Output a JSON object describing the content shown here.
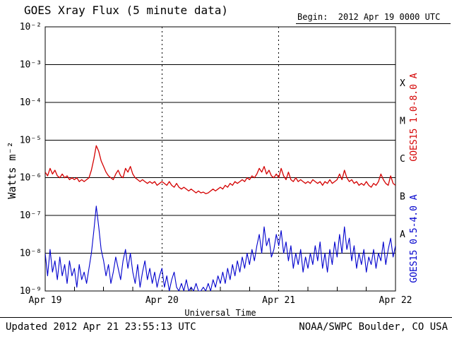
{
  "header": {
    "title": "GOES Xray Flux (5 minute data)",
    "begin_label": "Begin:  2012 Apr 19 0000 UTC"
  },
  "footer": {
    "updated": "Updated 2012 Apr 21 23:55:13 UTC",
    "source": "NOAA/SWPC Boulder, CO USA"
  },
  "axes": {
    "ylabel": "Watts m⁻²",
    "xlabel": "Universal Time",
    "x_ticks": [
      "Apr 19",
      "Apr 20",
      "Apr 21",
      "Apr 22"
    ],
    "y_tick_labels": [
      "10⁻²",
      "10⁻³",
      "10⁻⁴",
      "10⁻⁵",
      "10⁻⁶",
      "10⁻⁷",
      "10⁻⁸",
      "10⁻⁹"
    ],
    "flare_classes": [
      "X",
      "M",
      "C",
      "B",
      "A"
    ]
  },
  "colors": {
    "long": "#d40000",
    "short": "#0000cd",
    "grid": "#000000",
    "background": "#ffffff"
  },
  "chart_data": {
    "type": "line",
    "title": "GOES Xray Flux (5 minute data)",
    "xlabel": "Universal Time",
    "ylabel": "Watts m⁻²",
    "x_unit": "hours since 2012 Apr 19 0000 UTC",
    "x_range": [
      0,
      72
    ],
    "x_day_boundaries_hours": [
      24,
      48
    ],
    "y_scale": "log10",
    "y_range_log10": [
      -9,
      -2
    ],
    "grid": "decade horizontal solid, day vertical dotted",
    "legend_position": "right-rotated",
    "x_step_hours": 0.5,
    "series": [
      {
        "name": "GOES15 1.0-8.0 A",
        "color": "#d40000",
        "log10_values": [
          -5.85,
          -5.95,
          -5.75,
          -5.9,
          -5.8,
          -5.95,
          -6.0,
          -5.9,
          -6.0,
          -5.95,
          -6.05,
          -6.0,
          -6.05,
          -6.0,
          -6.1,
          -6.05,
          -6.1,
          -6.05,
          -6.0,
          -5.8,
          -5.5,
          -5.15,
          -5.3,
          -5.55,
          -5.7,
          -5.85,
          -5.95,
          -6.0,
          -6.05,
          -5.9,
          -5.8,
          -5.95,
          -6.0,
          -5.75,
          -5.85,
          -5.7,
          -5.9,
          -6.0,
          -6.05,
          -6.1,
          -6.05,
          -6.1,
          -6.15,
          -6.1,
          -6.15,
          -6.1,
          -6.2,
          -6.15,
          -6.1,
          -6.15,
          -6.2,
          -6.1,
          -6.2,
          -6.25,
          -6.15,
          -6.25,
          -6.3,
          -6.25,
          -6.3,
          -6.35,
          -6.3,
          -6.35,
          -6.4,
          -6.35,
          -6.4,
          -6.38,
          -6.42,
          -6.4,
          -6.35,
          -6.3,
          -6.35,
          -6.3,
          -6.25,
          -6.3,
          -6.2,
          -6.25,
          -6.15,
          -6.2,
          -6.1,
          -6.15,
          -6.1,
          -6.05,
          -6.1,
          -6.0,
          -6.05,
          -5.95,
          -6.0,
          -5.9,
          -5.75,
          -5.85,
          -5.7,
          -5.9,
          -5.8,
          -5.95,
          -6.0,
          -5.9,
          -6.0,
          -5.75,
          -5.95,
          -6.05,
          -5.85,
          -6.05,
          -6.1,
          -6.0,
          -6.1,
          -6.05,
          -6.1,
          -6.15,
          -6.1,
          -6.15,
          -6.05,
          -6.1,
          -6.15,
          -6.1,
          -6.2,
          -6.1,
          -6.15,
          -6.05,
          -6.15,
          -6.1,
          -6.05,
          -5.9,
          -6.05,
          -5.8,
          -6.0,
          -6.1,
          -6.05,
          -6.15,
          -6.1,
          -6.2,
          -6.15,
          -6.2,
          -6.1,
          -6.2,
          -6.25,
          -6.15,
          -6.2,
          -6.1,
          -5.9,
          -6.05,
          -6.15,
          -6.2,
          -5.95,
          -6.15,
          -6.2
        ]
      },
      {
        "name": "GOES15 0.5-4.0 A",
        "color": "#0000cd",
        "log10_values": [
          -8.0,
          -8.6,
          -7.9,
          -8.5,
          -8.2,
          -8.7,
          -8.1,
          -8.6,
          -8.3,
          -8.8,
          -8.2,
          -8.6,
          -8.4,
          -8.9,
          -8.3,
          -8.7,
          -8.5,
          -8.8,
          -8.4,
          -8.0,
          -7.4,
          -6.75,
          -7.3,
          -7.9,
          -8.2,
          -8.6,
          -8.3,
          -8.8,
          -8.5,
          -8.1,
          -8.4,
          -8.7,
          -8.2,
          -7.9,
          -8.4,
          -8.0,
          -8.5,
          -8.8,
          -8.3,
          -8.9,
          -8.5,
          -8.2,
          -8.7,
          -8.4,
          -8.8,
          -8.5,
          -8.9,
          -8.6,
          -8.4,
          -8.9,
          -8.6,
          -9.0,
          -8.7,
          -8.5,
          -8.9,
          -9.0,
          -8.8,
          -9.0,
          -8.7,
          -9.0,
          -8.9,
          -9.0,
          -8.8,
          -9.0,
          -9.0,
          -8.9,
          -9.0,
          -8.8,
          -9.0,
          -8.7,
          -8.9,
          -8.6,
          -8.8,
          -8.5,
          -8.8,
          -8.4,
          -8.7,
          -8.3,
          -8.6,
          -8.2,
          -8.5,
          -8.1,
          -8.4,
          -8.0,
          -8.3,
          -7.9,
          -8.2,
          -7.8,
          -7.5,
          -8.0,
          -7.3,
          -7.8,
          -7.6,
          -8.1,
          -7.9,
          -7.5,
          -7.8,
          -7.4,
          -8.0,
          -7.7,
          -8.2,
          -7.8,
          -8.4,
          -8.0,
          -8.3,
          -7.9,
          -8.5,
          -8.1,
          -8.4,
          -8.0,
          -8.3,
          -7.8,
          -8.2,
          -7.7,
          -8.4,
          -8.0,
          -8.5,
          -7.9,
          -8.3,
          -7.7,
          -8.1,
          -7.5,
          -8.0,
          -7.3,
          -7.9,
          -7.6,
          -8.2,
          -7.8,
          -8.4,
          -8.0,
          -8.3,
          -7.9,
          -8.5,
          -8.1,
          -8.3,
          -7.9,
          -8.4,
          -8.0,
          -8.2,
          -7.7,
          -8.3,
          -7.9,
          -7.6,
          -8.1,
          -7.8
        ]
      }
    ]
  }
}
